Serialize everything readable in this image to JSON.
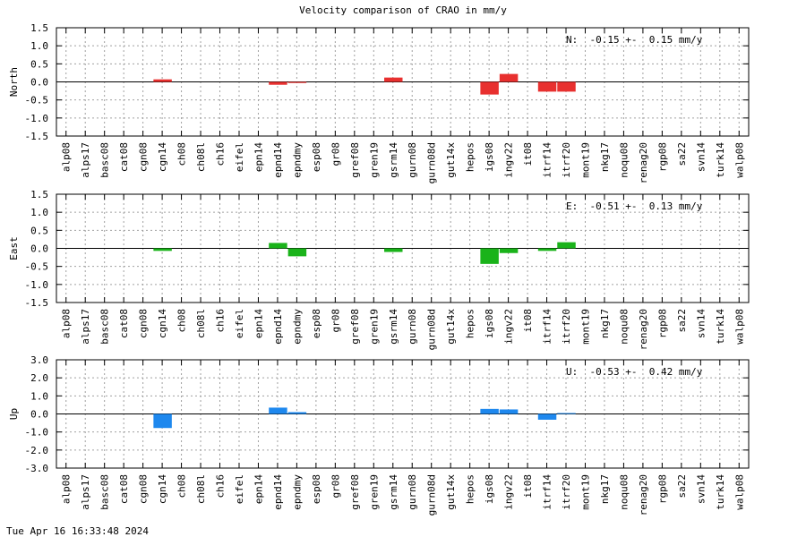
{
  "title": "Velocity comparison of CRAO in mm/y",
  "timestamp": "Tue Apr 16 16:33:48 2024",
  "chart_data": [
    {
      "type": "bar",
      "ylabel": "North",
      "annotation": "N:  -0.15 +-  0.15 mm/y",
      "color": "#e8302f",
      "ylim": [
        -1.5,
        1.5
      ],
      "yticks": [
        1.5,
        1.0,
        0.5,
        0.0,
        -0.5,
        -1.0,
        -1.5
      ],
      "ytick_labels": [
        "1.5",
        "1.0",
        "0.5",
        "0.0",
        "-0.5",
        "-1.0",
        "-1.5"
      ],
      "grid": true,
      "categories": [
        "alp08",
        "alps17",
        "basc08",
        "cat08",
        "cgn08",
        "cgn14",
        "ch08",
        "ch08l",
        "ch16",
        "eifel",
        "epn14",
        "epnd14",
        "epndmy",
        "esp08",
        "gr08",
        "gref08",
        "gren19",
        "gsrm14",
        "gurn08",
        "gurn08d",
        "gut14x",
        "hepos",
        "igs08",
        "ingv22",
        "it08",
        "itrf14",
        "itrf20",
        "mont19",
        "nkg17",
        "noqu08",
        "renag20",
        "rgp08",
        "sa22",
        "svn14",
        "turk14",
        "walp08"
      ],
      "values": [
        0,
        0,
        0,
        0,
        0,
        0.07,
        0,
        0,
        0,
        0,
        0,
        -0.08,
        -0.03,
        0,
        0,
        0,
        0,
        0.12,
        0,
        0,
        0,
        0,
        -0.35,
        0.22,
        0,
        -0.27,
        -0.27,
        0,
        0,
        0,
        0,
        0,
        0,
        0,
        0,
        0
      ]
    },
    {
      "type": "bar",
      "ylabel": "East",
      "annotation": "E:  -0.51 +-  0.13 mm/y",
      "color": "#1ab31a",
      "ylim": [
        -1.5,
        1.5
      ],
      "yticks": [
        1.5,
        1.0,
        0.5,
        0.0,
        -0.5,
        -1.0,
        -1.5
      ],
      "ytick_labels": [
        "1.5",
        "1.0",
        "0.5",
        "0.0",
        "-0.5",
        "-1.0",
        "-1.5"
      ],
      "grid": true,
      "categories": [
        "alp08",
        "alps17",
        "basc08",
        "cat08",
        "cgn08",
        "cgn14",
        "ch08",
        "ch08l",
        "ch16",
        "eifel",
        "epn14",
        "epnd14",
        "epndmy",
        "esp08",
        "gr08",
        "gref08",
        "gren19",
        "gsrm14",
        "gurn08",
        "gurn08d",
        "gut14x",
        "hepos",
        "igs08",
        "ingv22",
        "it08",
        "itrf14",
        "itrf20",
        "mont19",
        "nkg17",
        "noqu08",
        "renag20",
        "rgp08",
        "sa22",
        "svn14",
        "turk14",
        "walp08"
      ],
      "values": [
        0,
        0,
        0,
        0,
        0,
        -0.07,
        0,
        0,
        0,
        0,
        0,
        0.15,
        -0.22,
        0,
        0,
        0,
        0,
        -0.1,
        0,
        0,
        0,
        0,
        -0.43,
        -0.13,
        0,
        -0.07,
        0.17,
        0,
        0,
        0,
        0,
        0,
        0,
        0,
        0,
        0
      ]
    },
    {
      "type": "bar",
      "ylabel": "Up",
      "annotation": "U:  -0.53 +-  0.42 mm/y",
      "color": "#1e88ee",
      "ylim": [
        -3.0,
        3.0
      ],
      "yticks": [
        3.0,
        2.0,
        1.0,
        0.0,
        -1.0,
        -2.0,
        -3.0
      ],
      "ytick_labels": [
        "3.0",
        "2.0",
        "1.0",
        "0.0",
        "-1.0",
        "-2.0",
        "-3.0"
      ],
      "grid": true,
      "categories": [
        "alp08",
        "alps17",
        "basc08",
        "cat08",
        "cgn08",
        "cgn14",
        "ch08",
        "ch08l",
        "ch16",
        "eifel",
        "epn14",
        "epnd14",
        "epndmy",
        "esp08",
        "gr08",
        "gref08",
        "gren19",
        "gsrm14",
        "gurn08",
        "gurn08d",
        "gut14x",
        "hepos",
        "igs08",
        "ingv22",
        "it08",
        "itrf14",
        "itrf20",
        "mont19",
        "nkg17",
        "noqu08",
        "renag20",
        "rgp08",
        "sa22",
        "svn14",
        "turk14",
        "walp08"
      ],
      "values": [
        0,
        0,
        0,
        0,
        0,
        -0.78,
        0,
        0,
        0,
        0,
        0,
        0.35,
        0.1,
        0,
        0,
        0,
        0,
        0,
        0,
        0,
        0,
        0,
        0.28,
        0.25,
        0,
        -0.32,
        0.05,
        0,
        0,
        0,
        0,
        0,
        0,
        0,
        0,
        0
      ]
    }
  ]
}
